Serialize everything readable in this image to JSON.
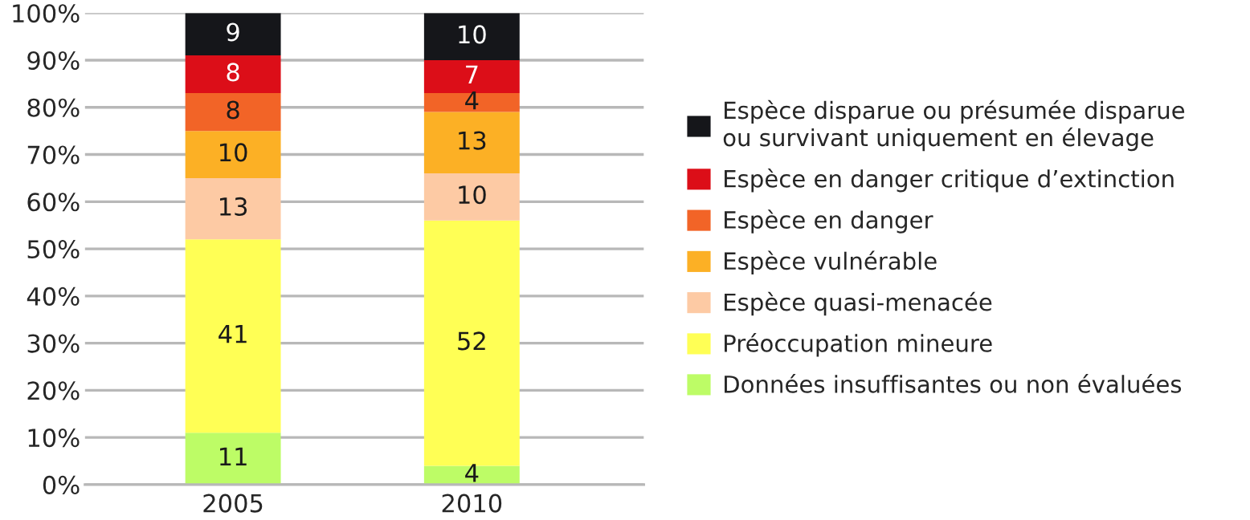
{
  "chart_data": {
    "type": "bar",
    "stacked": true,
    "categories": [
      "2005",
      "2010"
    ],
    "series": [
      {
        "name": "Données insuffisantes ou non évaluées",
        "color": "#bdfc66",
        "values": [
          11,
          4
        ]
      },
      {
        "name": "Préoccupation mineure",
        "color": "#ffff55",
        "values": [
          41,
          52
        ]
      },
      {
        "name": "Espèce quasi-menacée",
        "color": "#fdcaa4",
        "values": [
          13,
          10
        ]
      },
      {
        "name": "Espèce vulnérable",
        "color": "#fcb025",
        "values": [
          10,
          13
        ]
      },
      {
        "name": "Espèce en danger",
        "color": "#f26427",
        "values": [
          8,
          4
        ]
      },
      {
        "name": "Espèce en danger critique d’extinction",
        "color": "#dc0e18",
        "values": [
          8,
          7
        ]
      },
      {
        "name": "Espèce disparue ou présumée disparue\nou survivant uniquement en élevage",
        "color": "#15161a",
        "values": [
          9,
          10
        ]
      }
    ],
    "ylim": [
      0,
      100
    ],
    "yticks": [
      {
        "value": 0,
        "label": "0%"
      },
      {
        "value": 10,
        "label": "10%"
      },
      {
        "value": 20,
        "label": "20%"
      },
      {
        "value": 30,
        "label": "30%"
      },
      {
        "value": 40,
        "label": "40%"
      },
      {
        "value": 50,
        "label": "50%"
      },
      {
        "value": 60,
        "label": "60%"
      },
      {
        "value": 70,
        "label": "70%"
      },
      {
        "value": 80,
        "label": "80%"
      },
      {
        "value": 90,
        "label": "90%"
      },
      {
        "value": 100,
        "label": "100%"
      }
    ],
    "grid": "y",
    "legend": "right",
    "data_labels": true
  }
}
